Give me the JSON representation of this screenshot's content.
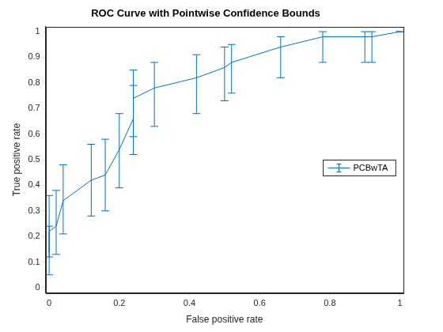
{
  "chart_data": {
    "type": "line",
    "title": "ROC Curve with Pointwise Confidence Bounds",
    "x_label": "False positive rate",
    "y_label": "True positive rate",
    "xlim": [
      -0.01,
      1.01
    ],
    "ylim": [
      -0.02,
      1.02
    ],
    "xticks": [
      0,
      0.2,
      0.4,
      0.6,
      0.8,
      1
    ],
    "yticks": [
      0,
      0.1,
      0.2,
      0.3,
      0.4,
      0.5,
      0.6,
      0.7,
      0.8,
      0.9,
      1
    ],
    "grid": false,
    "legend": "east",
    "series": [
      {
        "name": "PCBwTA",
        "color": "#0072bd",
        "marker": "none",
        "line_style": "solid",
        "x": [
          0,
          0,
          0.02,
          0.04,
          0.12,
          0.16,
          0.2,
          0.24,
          0.24,
          0.3,
          0.42,
          0.5,
          0.52,
          0.66,
          0.78,
          0.9,
          0.92,
          1
        ],
        "values": [
          0.14,
          0.22,
          0.24,
          0.34,
          0.42,
          0.44,
          0.54,
          0.66,
          0.74,
          0.78,
          0.82,
          0.86,
          0.88,
          0.94,
          0.98,
          0.98,
          0.98,
          1
        ],
        "lower": [
          0.05,
          0.12,
          0.13,
          0.21,
          0.28,
          0.3,
          0.39,
          0.52,
          0.59,
          0.63,
          0.68,
          0.73,
          0.76,
          0.82,
          0.88,
          0.88,
          0.88,
          1
        ],
        "upper": [
          0.24,
          0.36,
          0.38,
          0.48,
          0.56,
          0.58,
          0.68,
          0.79,
          0.85,
          0.88,
          0.91,
          0.94,
          0.95,
          0.98,
          1,
          1,
          1,
          1
        ]
      }
    ]
  }
}
